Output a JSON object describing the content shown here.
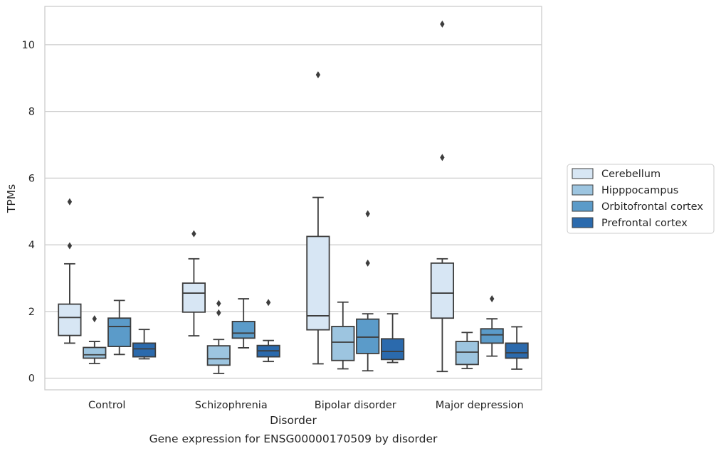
{
  "chart_data": {
    "type": "box",
    "title": "Gene expression for ENSG00000170509 by disorder",
    "xlabel": "Disorder",
    "ylabel": "TPMs",
    "ylim": [
      -0.35,
      11.15
    ],
    "yticks": [
      0,
      2,
      4,
      6,
      8,
      10
    ],
    "grid": "horizontal",
    "legend_position": "right",
    "categories": [
      "Control",
      "Schizophrenia",
      "Bipolar disorder",
      "Major depression"
    ],
    "series": [
      {
        "name": "Cerebellum",
        "color": "#d7e6f4",
        "boxes": [
          {
            "whisker_low": 1.05,
            "q1": 1.28,
            "median": 1.82,
            "q3": 2.22,
            "whisker_high": 3.43,
            "outliers": [
              3.97,
              5.29
            ]
          },
          {
            "whisker_low": 1.27,
            "q1": 1.98,
            "median": 2.55,
            "q3": 2.85,
            "whisker_high": 3.58,
            "outliers": [
              4.33
            ]
          },
          {
            "whisker_low": 0.43,
            "q1": 1.45,
            "median": 1.87,
            "q3": 4.25,
            "whisker_high": 5.42,
            "outliers": [
              9.1
            ]
          },
          {
            "whisker_low": 0.2,
            "q1": 1.8,
            "median": 2.55,
            "q3": 3.45,
            "whisker_high": 3.58,
            "outliers": [
              6.62,
              10.62
            ]
          }
        ]
      },
      {
        "name": "Hipppocampus",
        "color": "#9dc5e0",
        "boxes": [
          {
            "whisker_low": 0.44,
            "q1": 0.6,
            "median": 0.7,
            "q3": 0.92,
            "whisker_high": 1.1,
            "outliers": [
              1.78
            ]
          },
          {
            "whisker_low": 0.14,
            "q1": 0.39,
            "median": 0.58,
            "q3": 0.97,
            "whisker_high": 1.16,
            "outliers": [
              1.96,
              2.24
            ]
          },
          {
            "whisker_low": 0.28,
            "q1": 0.53,
            "median": 1.08,
            "q3": 1.55,
            "whisker_high": 2.28,
            "outliers": []
          },
          {
            "whisker_low": 0.29,
            "q1": 0.41,
            "median": 0.78,
            "q3": 1.1,
            "whisker_high": 1.37,
            "outliers": []
          }
        ]
      },
      {
        "name": "Orbitofrontal cortex",
        "color": "#5b9bc9",
        "boxes": [
          {
            "whisker_low": 0.71,
            "q1": 0.95,
            "median": 1.55,
            "q3": 1.8,
            "whisker_high": 2.33,
            "outliers": []
          },
          {
            "whisker_low": 0.91,
            "q1": 1.2,
            "median": 1.35,
            "q3": 1.7,
            "whisker_high": 2.38,
            "outliers": []
          },
          {
            "whisker_low": 0.22,
            "q1": 0.74,
            "median": 1.23,
            "q3": 1.77,
            "whisker_high": 1.93,
            "outliers": [
              3.45,
              4.93
            ]
          },
          {
            "whisker_low": 0.66,
            "q1": 1.05,
            "median": 1.3,
            "q3": 1.48,
            "whisker_high": 1.78,
            "outliers": [
              2.38
            ]
          }
        ]
      },
      {
        "name": "Prefrontal cortex",
        "color": "#2b6aad",
        "boxes": [
          {
            "whisker_low": 0.58,
            "q1": 0.64,
            "median": 0.88,
            "q3": 1.05,
            "whisker_high": 1.46,
            "outliers": []
          },
          {
            "whisker_low": 0.5,
            "q1": 0.64,
            "median": 0.82,
            "q3": 0.98,
            "whisker_high": 1.13,
            "outliers": [
              2.27
            ]
          },
          {
            "whisker_low": 0.47,
            "q1": 0.56,
            "median": 0.8,
            "q3": 1.18,
            "whisker_high": 1.93,
            "outliers": []
          },
          {
            "whisker_low": 0.27,
            "q1": 0.6,
            "median": 0.76,
            "q3": 1.05,
            "whisker_high": 1.54,
            "outliers": []
          }
        ]
      }
    ]
  }
}
